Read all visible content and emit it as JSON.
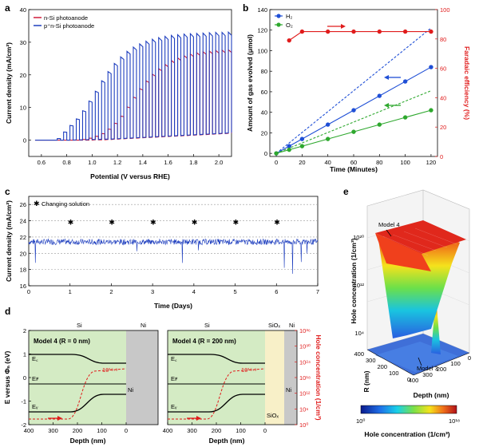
{
  "chart_data": [
    {
      "panel": "a",
      "type": "line",
      "xlabel": "Potential (V versus RHE)",
      "ylabel": "Current density (mA/cm²)",
      "xlim": [
        0.5,
        2.1
      ],
      "ylim": [
        -5,
        40
      ],
      "xticks": [
        "0.6",
        "0.8",
        "1.0",
        "1.2",
        "1.4",
        "1.6",
        "1.8",
        "2.0"
      ],
      "yticks": [
        "0",
        "10",
        "20",
        "30",
        "40"
      ],
      "legend": "top-left",
      "series": [
        {
          "name": "n-Si photoanode",
          "color": "#d01c3a",
          "x": [
            0.55,
            0.95,
            1.0,
            1.05,
            1.1,
            1.15,
            1.2,
            1.25,
            1.3,
            1.35,
            1.4,
            1.45,
            1.5,
            1.55,
            1.6,
            1.65,
            1.7,
            1.75,
            1.8,
            1.85,
            1.9,
            1.95,
            2.0,
            2.05,
            2.1
          ],
          "light": [
            0,
            0.2,
            0.6,
            1.2,
            2.0,
            3.4,
            5.2,
            7.4,
            10.2,
            13.2,
            15.8,
            18.2,
            20.2,
            21.9,
            23.2,
            24.4,
            25.2,
            25.9,
            26.4,
            26.8,
            27.1,
            27.3,
            27.5,
            27.6,
            27.7
          ],
          "dark": [
            0,
            0,
            0,
            0.1,
            0.1,
            0.2,
            0.3,
            0.4,
            0.5,
            0.6,
            0.7,
            0.8,
            0.9,
            1.0,
            1.1,
            1.2,
            1.3,
            1.4,
            1.5,
            1.6,
            1.7,
            1.8,
            1.9,
            2.0,
            2.1
          ]
        },
        {
          "name": "p⁺n-Si photoanode",
          "color": "#1f3fbf",
          "x": [
            0.55,
            0.75,
            0.8,
            0.85,
            0.9,
            0.95,
            1.0,
            1.05,
            1.1,
            1.15,
            1.2,
            1.25,
            1.3,
            1.35,
            1.4,
            1.45,
            1.5,
            1.55,
            1.6,
            1.65,
            1.7,
            1.75,
            1.8,
            1.85,
            1.9,
            1.95,
            2.0,
            2.05,
            2.1
          ],
          "light": [
            0,
            0.5,
            2.5,
            4.5,
            6.5,
            9.0,
            12.0,
            15.0,
            18.2,
            21.0,
            23.5,
            25.5,
            27.2,
            28.5,
            29.5,
            30.3,
            30.9,
            31.4,
            31.8,
            32.1,
            32.3,
            32.5,
            32.6,
            32.7,
            32.8,
            32.9,
            33.0,
            33.0,
            33.1
          ],
          "dark": [
            0,
            0,
            0,
            0,
            0.1,
            0.1,
            0.2,
            0.2,
            0.3,
            0.3,
            0.4,
            0.5,
            0.6,
            0.7,
            0.8,
            0.9,
            1.0,
            1.1,
            1.2,
            1.3,
            1.4,
            1.5,
            1.6,
            1.7,
            1.8,
            1.9,
            2.0,
            2.1,
            2.2
          ]
        }
      ]
    },
    {
      "panel": "b",
      "type": "scatter",
      "xlabel": "Time (Minutes)",
      "ylabel": "Amount of gas evolved (μmol)",
      "ylabel_right": "Faradaic efficiency (%)",
      "xlim": [
        -5,
        125
      ],
      "ylim": [
        -3,
        140
      ],
      "ylim_right": [
        0,
        100
      ],
      "xticks": [
        "0",
        "20",
        "40",
        "60",
        "80",
        "100",
        "120"
      ],
      "yticks": [
        "0",
        "20",
        "40",
        "60",
        "80",
        "100",
        "120",
        "140"
      ],
      "yticks_right": [
        "0",
        "20",
        "40",
        "60",
        "80",
        "100"
      ],
      "legend": "top-left",
      "series": [
        {
          "name": "H₂",
          "color": "#1f4fd6",
          "x": [
            0,
            10,
            20,
            40,
            60,
            80,
            100,
            120
          ],
          "values": [
            0,
            7,
            14,
            28,
            42,
            56,
            70,
            84
          ],
          "theoretical": [
            0,
            122
          ]
        },
        {
          "name": "O₂",
          "color": "#2ea82e",
          "x": [
            0,
            10,
            20,
            40,
            60,
            80,
            100,
            120
          ],
          "values": [
            0,
            3.5,
            7,
            14,
            21,
            28,
            35,
            42
          ],
          "theoretical": [
            0,
            61
          ]
        },
        {
          "name": "",
          "color": "#e01c1c",
          "axis": "right",
          "x": [
            10,
            20,
            40,
            60,
            80,
            100,
            120
          ],
          "values": [
            79,
            85,
            85,
            85,
            85,
            85,
            85
          ]
        }
      ]
    },
    {
      "panel": "c",
      "type": "line",
      "xlabel": "Time (Days)",
      "ylabel": "Current density (mA/cm²)",
      "xlim": [
        0,
        7
      ],
      "ylim": [
        16,
        27
      ],
      "xticks": [
        "0",
        "1",
        "2",
        "3",
        "4",
        "5",
        "6",
        "7"
      ],
      "yticks": [
        "16",
        "18",
        "20",
        "22",
        "24",
        "26"
      ],
      "legend_label": "Changing solution",
      "series": [
        {
          "name": "",
          "color": "#1f3fbf",
          "mean": 21.4
        }
      ],
      "markers_x": [
        1,
        2,
        3,
        4,
        5,
        6
      ],
      "markers_y": 23.8,
      "dashed_lines_y": [
        18,
        20,
        22,
        24,
        26
      ]
    },
    {
      "panel": "d",
      "type": "line",
      "xlabel": "Depth (nm)",
      "ylabel": "E versus Φₙ (eV)",
      "ylabel_right": "Hole concentration (1/cm³)",
      "xticks": [
        "400",
        "300",
        "200",
        "100",
        "0"
      ],
      "yticks": [
        "-2",
        "-1",
        "0",
        "1",
        "2"
      ],
      "yticks_right": [
        "10⁰",
        "10⁶",
        "10¹²",
        "10¹⁸",
        "10²⁴",
        "10³⁰",
        "10³⁶"
      ],
      "subplots": [
        {
          "title": "Model 4 (R = 0 nm)",
          "regions": [
            "Si",
            "Ni"
          ],
          "annotation": "10¹⁸·⁹",
          "labels": [
            "E꜀",
            "Eꜰ",
            "Eᵥ"
          ],
          "metal_label": "Ni"
        },
        {
          "title": "Model 4 (R = 200 nm)",
          "regions": [
            "Si",
            "SiOₓ",
            "Ni"
          ],
          "annotation": "10¹⁸·⁹",
          "labels": [
            "E꜀",
            "Eꜰ",
            "Eᵥ"
          ],
          "metal_label": "Ni",
          "oxide_label": "SiOₓ"
        }
      ]
    },
    {
      "panel": "e",
      "type": "heatmap",
      "xlabel": "Depth (nm)",
      "ylabel": "R (nm)",
      "zlabel": "Hole concentration (1/cm³)",
      "xticks": [
        "400",
        "300",
        "200",
        "100",
        "0"
      ],
      "yticks": [
        "0",
        "100",
        "200",
        "300",
        "400"
      ],
      "zticks": [
        "10⁴",
        "10¹²",
        "10²⁰"
      ],
      "annotations": [
        "Model 4",
        "Model 3"
      ],
      "colorbar": {
        "min": "10⁰",
        "max": "10¹⁸",
        "label": "Hole concentration (1/cm³)"
      }
    }
  ],
  "panel_labels": {
    "a": "a",
    "b": "b",
    "c": "c",
    "d": "d",
    "e": "e"
  }
}
